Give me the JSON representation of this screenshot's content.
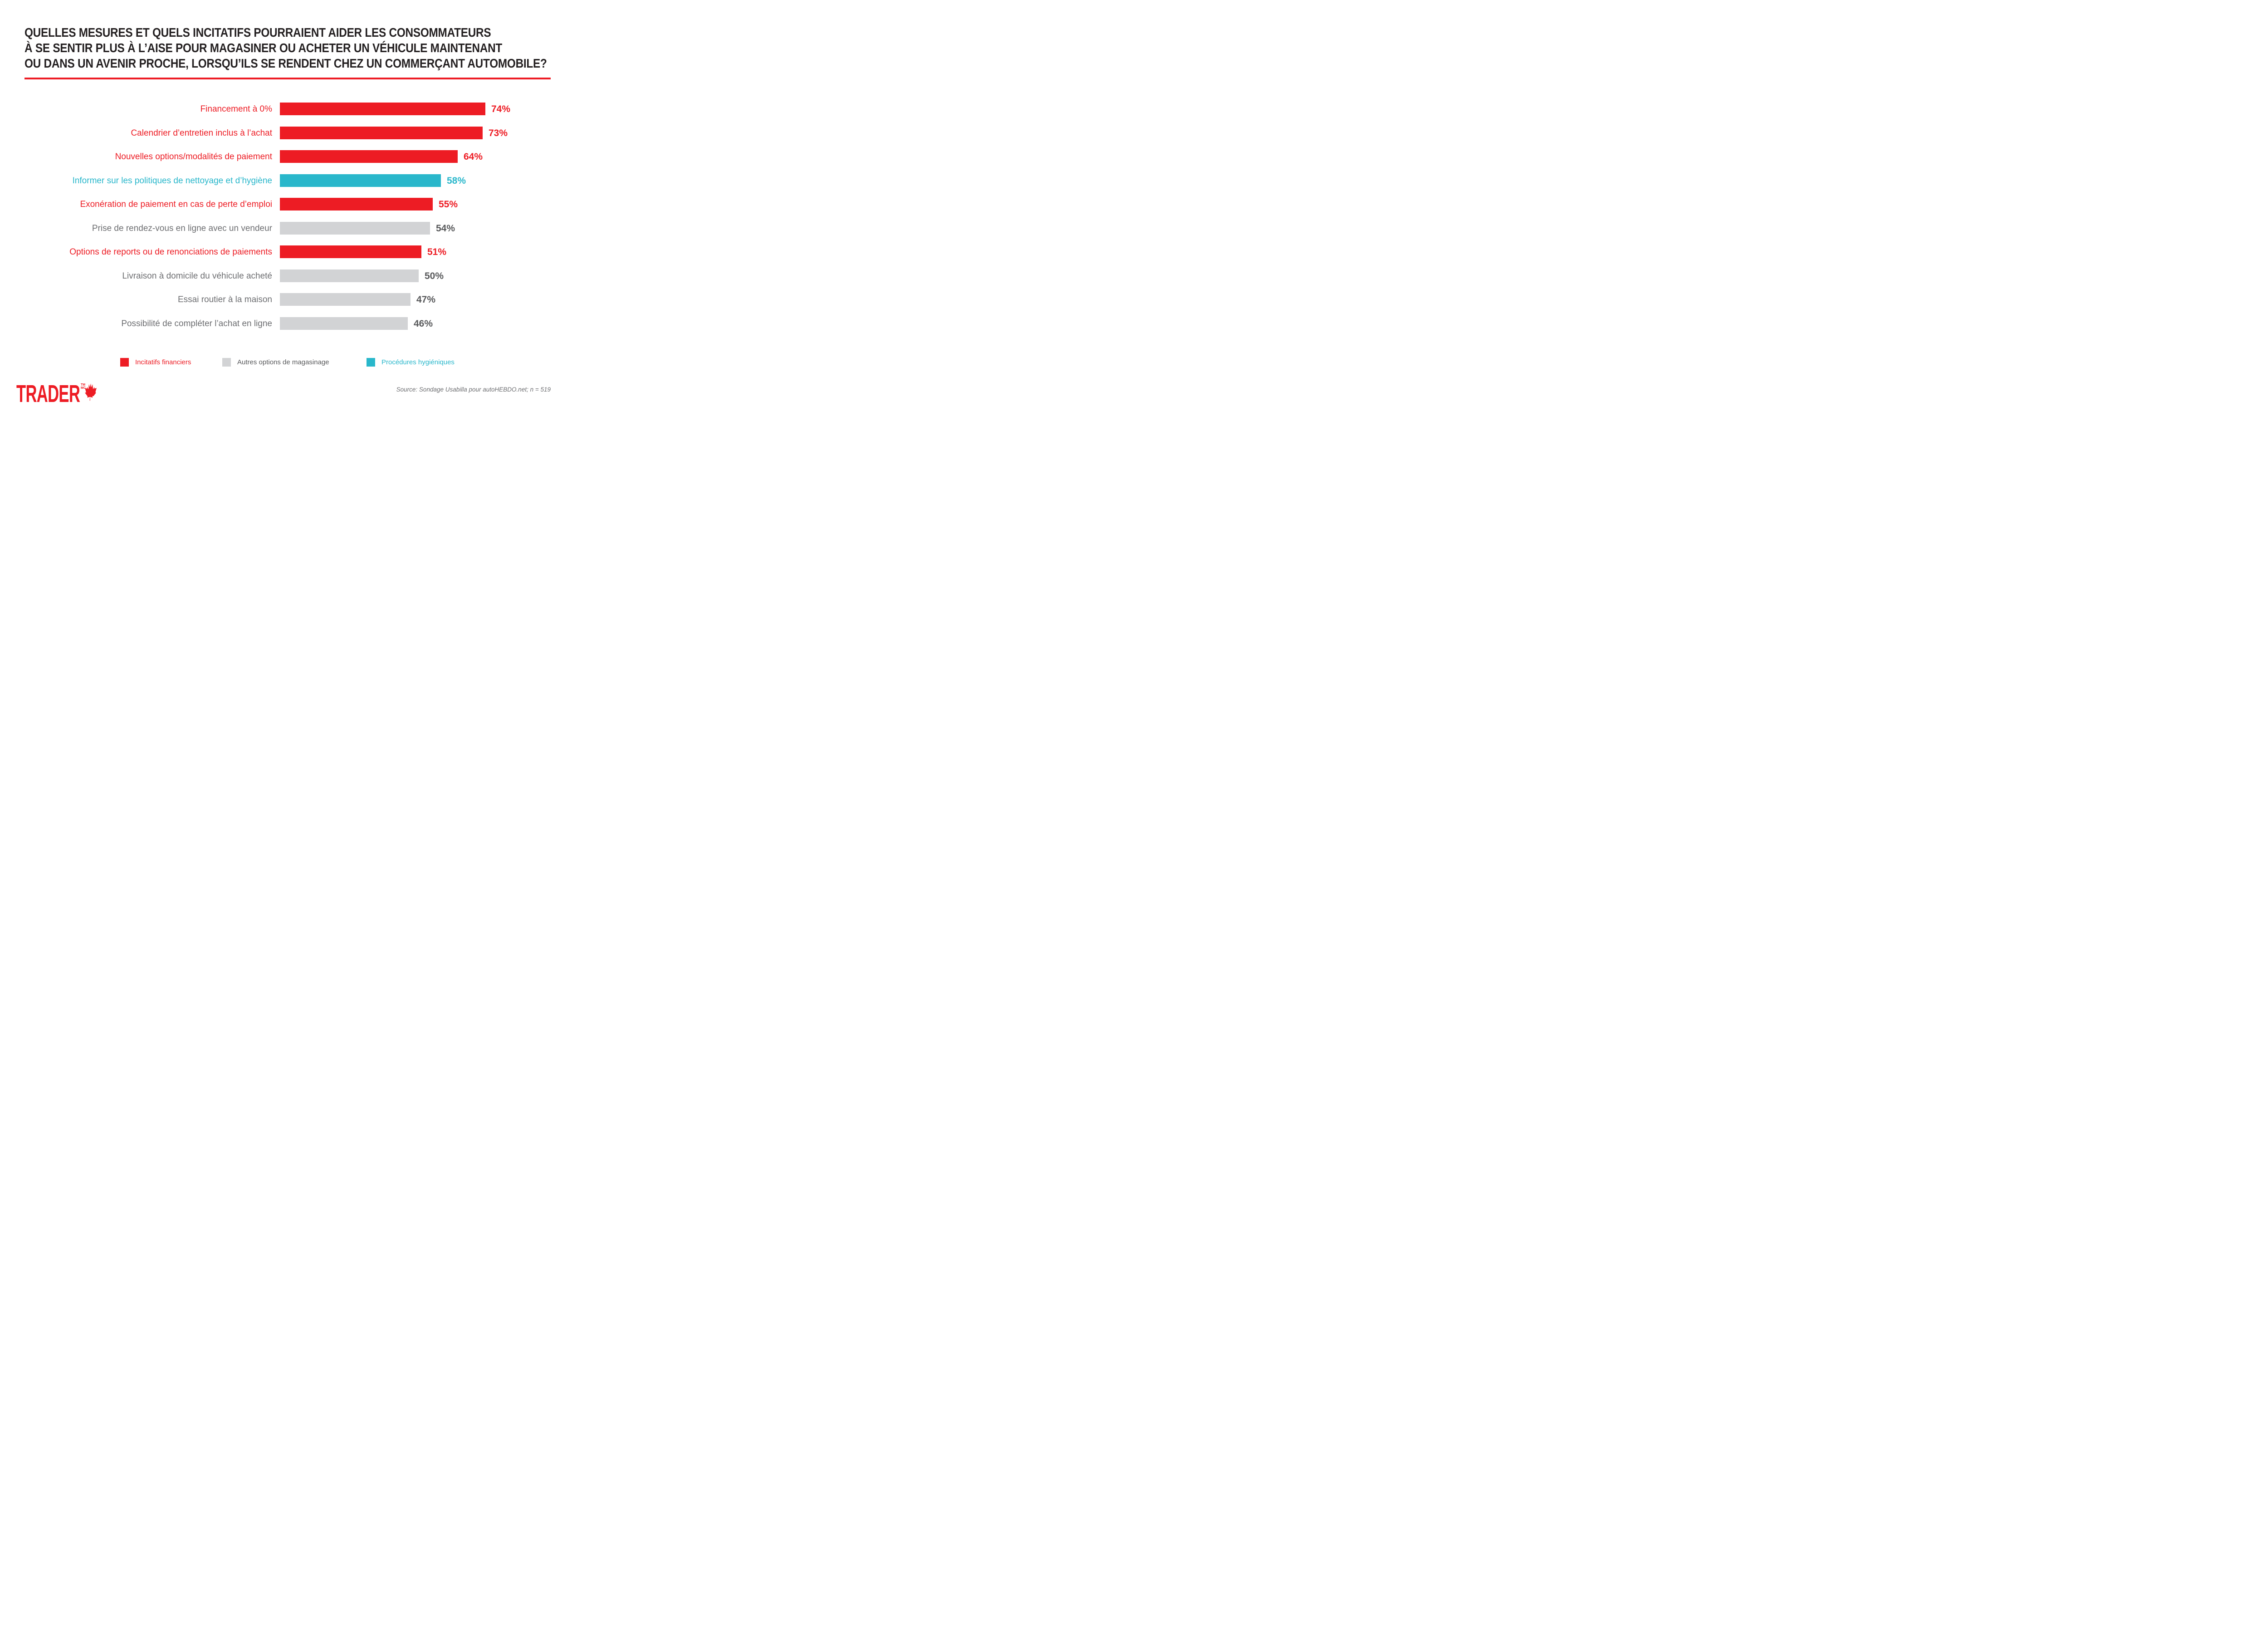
{
  "title": {
    "lines": [
      "QUELLES MESURES ET QUELS INCITATIFS POURRAIENT AIDER LES CONSOMMATEURS",
      "À SE SENTIR PLUS À L’AISE POUR MAGASINER OU ACHETER UN VÉHICULE MAINTENANT",
      "OU DANS UN AVENIR PROCHE, LORSQU’ILS SE RENDENT CHEZ UN COMMERÇANT AUTOMOBILE?"
    ],
    "underline_color": "#ED1C24"
  },
  "chart_data": {
    "type": "bar",
    "orientation": "horizontal",
    "categories": [
      "Financement à 0%",
      "Calendrier d’entretien inclus à l’achat",
      "Nouvelles options/modalités de paiement",
      "Informer sur les politiques de nettoyage et d’hygiène",
      "Exonération de paiement en cas de perte d’emploi",
      "Prise de rendez-vous en ligne avec un vendeur",
      "Options de reports ou de renonciations de paiements",
      "Livraison à domicile du véhicule acheté",
      "Essai routier à la maison",
      "Possibilité de compléter l’achat en ligne"
    ],
    "values": [
      74,
      73,
      64,
      58,
      55,
      54,
      51,
      50,
      47,
      46
    ],
    "value_suffix": "%",
    "series_category": [
      "financial",
      "financial",
      "financial",
      "hygiene",
      "financial",
      "shopping",
      "financial",
      "shopping",
      "shopping",
      "shopping"
    ],
    "xlim": [
      0,
      100
    ],
    "grid": false,
    "legend_position": "bottom",
    "styles": {
      "financial": {
        "bar": "#ED1C24",
        "label": "#ED1C24",
        "value": "#ED1C24"
      },
      "shopping": {
        "bar": "#D2D3D5",
        "label": "#6D6E71",
        "value": "#58595B"
      },
      "hygiene": {
        "bar": "#29B7CB",
        "label": "#29B7CB",
        "value": "#29B7CB"
      }
    }
  },
  "legend": [
    {
      "label": "Incitatifs financiers",
      "swatch_color": "#ED1C24",
      "text_color": "#ED1C24"
    },
    {
      "label": "Autres options de magasinage",
      "swatch_color": "#D2D3D5",
      "text_color": "#58595B"
    },
    {
      "label": "Procédures hygiéniques",
      "swatch_color": "#29B7CB",
      "text_color": "#29B7CB"
    }
  ],
  "footer": {
    "logo_text": "TRADER",
    "logo_tm": "TM",
    "logo_mc": "MC",
    "logo_color": "#ED1C24",
    "source": "Source: Sondage Usabilla pour autoHEBDO.net; n = 519"
  }
}
